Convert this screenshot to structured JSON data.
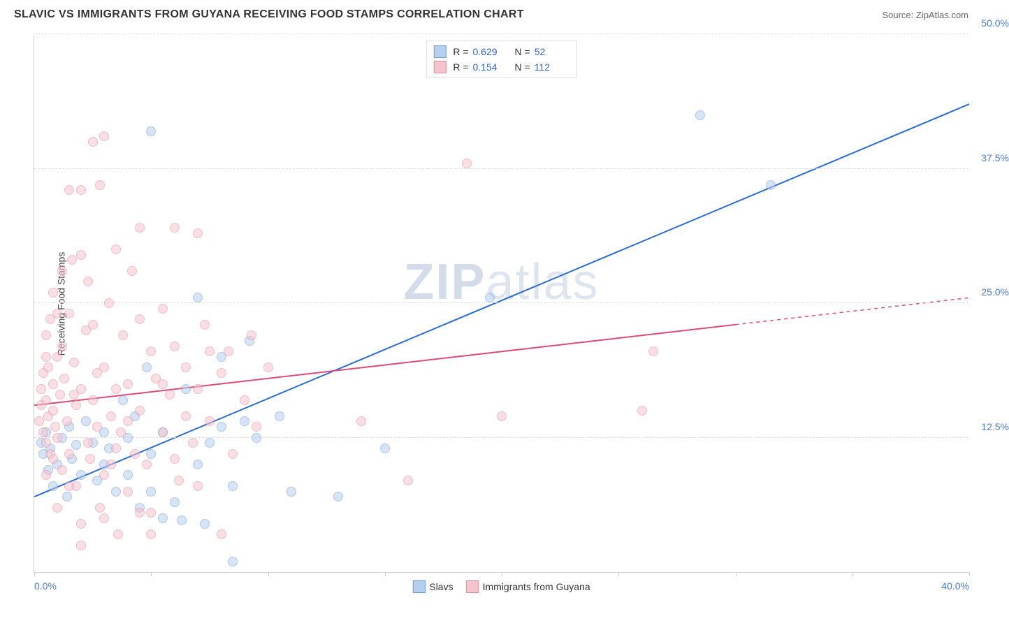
{
  "header": {
    "title": "SLAVIC VS IMMIGRANTS FROM GUYANA RECEIVING FOOD STAMPS CORRELATION CHART",
    "source": "Source: ZipAtlas.com"
  },
  "chart": {
    "type": "scatter",
    "y_axis_label": "Receiving Food Stamps",
    "background": "#ffffff",
    "grid_color": "#dddddd",
    "axis_color": "#cccccc",
    "tick_label_color": "#4a7dc9",
    "xlim": [
      0,
      40
    ],
    "ylim": [
      0,
      50
    ],
    "x_ticks": [
      0,
      5,
      10,
      15,
      20,
      25,
      30,
      35,
      40
    ],
    "x_tick_labels": [
      "0.0%",
      "",
      "",
      "",
      "",
      "",
      "",
      "",
      "40.0%"
    ],
    "y_ticks": [
      12.5,
      25.0,
      37.5,
      50.0
    ],
    "y_tick_labels": [
      "12.5%",
      "25.0%",
      "37.5%",
      "50.0%"
    ],
    "watermark": "ZIPatlas",
    "series": [
      {
        "name": "Slavs",
        "color_fill": "#b6cef0",
        "color_stroke": "#6b9bd8",
        "trend_color": "#2b6cd4",
        "trend_start": [
          0,
          7.0
        ],
        "trend_end": [
          40,
          43.5
        ],
        "trend_solid_end_x": 40,
        "R": "0.629",
        "N": "52",
        "points": [
          [
            0.3,
            12.0
          ],
          [
            0.4,
            11.0
          ],
          [
            0.5,
            13.0
          ],
          [
            0.6,
            9.5
          ],
          [
            0.7,
            11.5
          ],
          [
            0.8,
            8.0
          ],
          [
            1.0,
            10.0
          ],
          [
            1.2,
            12.5
          ],
          [
            1.4,
            7.0
          ],
          [
            1.5,
            13.5
          ],
          [
            1.6,
            10.5
          ],
          [
            1.8,
            11.8
          ],
          [
            2.0,
            9.0
          ],
          [
            2.2,
            14.0
          ],
          [
            2.5,
            12.0
          ],
          [
            2.7,
            8.5
          ],
          [
            3.0,
            13.0
          ],
          [
            3.0,
            10.0
          ],
          [
            3.2,
            11.5
          ],
          [
            3.5,
            7.5
          ],
          [
            3.8,
            16.0
          ],
          [
            4.0,
            12.5
          ],
          [
            4.0,
            9.0
          ],
          [
            4.3,
            14.5
          ],
          [
            4.5,
            6.0
          ],
          [
            4.8,
            19.0
          ],
          [
            5.0,
            11.0
          ],
          [
            5.0,
            7.5
          ],
          [
            5.5,
            5.0
          ],
          [
            5.5,
            13.0
          ],
          [
            6.0,
            6.5
          ],
          [
            6.3,
            4.8
          ],
          [
            6.5,
            17.0
          ],
          [
            7.0,
            25.5
          ],
          [
            7.0,
            10.0
          ],
          [
            7.3,
            4.5
          ],
          [
            7.5,
            12.0
          ],
          [
            8.0,
            20.0
          ],
          [
            8.0,
            13.5
          ],
          [
            8.5,
            8.0
          ],
          [
            9.0,
            14.0
          ],
          [
            9.2,
            21.5
          ],
          [
            9.5,
            12.5
          ],
          [
            10.5,
            14.5
          ],
          [
            11.0,
            7.5
          ],
          [
            13.0,
            7.0
          ],
          [
            15.0,
            11.5
          ],
          [
            19.5,
            25.5
          ],
          [
            5.0,
            41.0
          ],
          [
            28.5,
            42.5
          ],
          [
            31.5,
            36.0
          ],
          [
            8.5,
            1.0
          ]
        ]
      },
      {
        "name": "Immigrants from Guyana",
        "color_fill": "#f5c4cf",
        "color_stroke": "#e28ba0",
        "trend_color": "#d94c74",
        "trend_start": [
          0,
          15.5
        ],
        "trend_end": [
          40,
          25.5
        ],
        "trend_solid_end_x": 30,
        "R": "0.154",
        "N": "112",
        "points": [
          [
            0.2,
            14.0
          ],
          [
            0.3,
            15.5
          ],
          [
            0.3,
            17.0
          ],
          [
            0.4,
            13.0
          ],
          [
            0.4,
            18.5
          ],
          [
            0.5,
            12.0
          ],
          [
            0.5,
            16.0
          ],
          [
            0.5,
            22.0
          ],
          [
            0.6,
            14.5
          ],
          [
            0.6,
            19.0
          ],
          [
            0.7,
            11.0
          ],
          [
            0.7,
            23.5
          ],
          [
            0.8,
            15.0
          ],
          [
            0.8,
            17.5
          ],
          [
            0.9,
            13.5
          ],
          [
            1.0,
            20.0
          ],
          [
            1.0,
            12.5
          ],
          [
            1.1,
            16.5
          ],
          [
            1.2,
            21.0
          ],
          [
            1.2,
            9.5
          ],
          [
            1.3,
            18.0
          ],
          [
            1.4,
            14.0
          ],
          [
            1.5,
            24.0
          ],
          [
            1.5,
            11.0
          ],
          [
            1.6,
            29.0
          ],
          [
            1.7,
            19.5
          ],
          [
            1.8,
            8.0
          ],
          [
            1.8,
            15.5
          ],
          [
            2.0,
            35.5
          ],
          [
            2.0,
            17.0
          ],
          [
            2.0,
            4.5
          ],
          [
            2.2,
            22.5
          ],
          [
            2.3,
            27.0
          ],
          [
            2.4,
            10.5
          ],
          [
            2.5,
            16.0
          ],
          [
            2.5,
            40.0
          ],
          [
            2.7,
            13.5
          ],
          [
            2.8,
            36.0
          ],
          [
            2.8,
            6.0
          ],
          [
            3.0,
            19.0
          ],
          [
            3.0,
            9.0
          ],
          [
            3.2,
            25.0
          ],
          [
            3.3,
            14.5
          ],
          [
            3.5,
            30.0
          ],
          [
            3.5,
            11.5
          ],
          [
            3.6,
            3.5
          ],
          [
            3.8,
            22.0
          ],
          [
            4.0,
            17.5
          ],
          [
            4.0,
            7.5
          ],
          [
            4.2,
            28.0
          ],
          [
            4.5,
            15.0
          ],
          [
            4.5,
            23.5
          ],
          [
            4.8,
            10.0
          ],
          [
            5.0,
            20.5
          ],
          [
            5.0,
            5.5
          ],
          [
            5.2,
            18.0
          ],
          [
            5.5,
            13.0
          ],
          [
            5.5,
            24.5
          ],
          [
            5.8,
            16.5
          ],
          [
            6.0,
            21.0
          ],
          [
            6.0,
            32.0
          ],
          [
            6.2,
            8.5
          ],
          [
            6.5,
            19.0
          ],
          [
            6.8,
            12.0
          ],
          [
            7.0,
            31.5
          ],
          [
            7.0,
            17.0
          ],
          [
            7.3,
            23.0
          ],
          [
            7.5,
            14.0
          ],
          [
            8.0,
            18.5
          ],
          [
            8.0,
            3.5
          ],
          [
            8.3,
            20.5
          ],
          [
            8.5,
            11.0
          ],
          [
            9.0,
            16.0
          ],
          [
            9.3,
            22.0
          ],
          [
            9.5,
            13.5
          ],
          [
            10.0,
            19.0
          ],
          [
            14.0,
            14.0
          ],
          [
            16.0,
            8.5
          ],
          [
            18.5,
            38.0
          ],
          [
            20.0,
            14.5
          ],
          [
            26.0,
            15.0
          ],
          [
            26.5,
            20.5
          ],
          [
            3.0,
            40.5
          ],
          [
            1.5,
            35.5
          ],
          [
            2.0,
            29.5
          ],
          [
            4.5,
            32.0
          ],
          [
            1.0,
            24.0
          ],
          [
            0.5,
            20.0
          ],
          [
            0.8,
            26.0
          ],
          [
            1.2,
            28.0
          ],
          [
            2.5,
            23.0
          ],
          [
            3.5,
            17.0
          ],
          [
            4.0,
            14.0
          ],
          [
            5.5,
            17.5
          ],
          [
            6.0,
            10.5
          ],
          [
            6.5,
            14.5
          ],
          [
            7.0,
            8.0
          ],
          [
            7.5,
            20.5
          ],
          [
            3.0,
            5.0
          ],
          [
            4.5,
            5.5
          ],
          [
            5.0,
            3.5
          ],
          [
            2.0,
            2.5
          ],
          [
            1.0,
            6.0
          ],
          [
            1.5,
            8.0
          ],
          [
            0.5,
            9.0
          ],
          [
            0.8,
            10.5
          ],
          [
            2.3,
            12.0
          ],
          [
            3.3,
            10.0
          ],
          [
            3.7,
            13.0
          ],
          [
            4.3,
            11.0
          ],
          [
            1.7,
            16.5
          ],
          [
            2.7,
            18.5
          ]
        ]
      }
    ]
  },
  "bottom_legend": {
    "item1": "Slavs",
    "item2": "Immigrants from Guyana"
  }
}
